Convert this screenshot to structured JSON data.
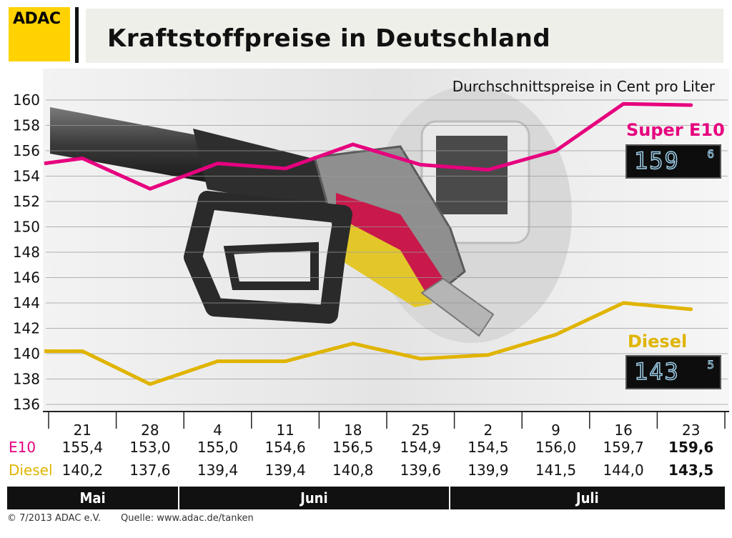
{
  "header": {
    "logo": "ADAC",
    "title": "Kraftstoffpreise in Deutschland"
  },
  "chart_data": {
    "type": "line",
    "subtitle": "Durchschnittspreise in Cent pro Liter",
    "ylim": [
      136,
      160
    ],
    "yticks": [
      136,
      138,
      140,
      142,
      144,
      146,
      148,
      150,
      152,
      154,
      156,
      158,
      160
    ],
    "grid": true,
    "categories": [
      "21",
      "28",
      "4",
      "11",
      "18",
      "25",
      "2",
      "9",
      "16",
      "23"
    ],
    "months": [
      {
        "label": "Mai",
        "span": [
          0,
          1
        ]
      },
      {
        "label": "Juni",
        "span": [
          2,
          5
        ]
      },
      {
        "label": "Juli",
        "span": [
          6,
          9
        ]
      }
    ],
    "series": [
      {
        "name": "Super E10",
        "row_label": "E10",
        "color": "#e6007e",
        "values": [
          155.4,
          153.0,
          155.0,
          154.6,
          156.5,
          154.9,
          154.5,
          156.0,
          159.7,
          159.6
        ],
        "value_labels": [
          "155,4",
          "153,0",
          "155,0",
          "154,6",
          "156,5",
          "154,9",
          "154,5",
          "156,0",
          "159,7",
          "159,6"
        ],
        "display": "159",
        "display_sup": "6"
      },
      {
        "name": "Diesel",
        "row_label": "Diesel",
        "color": "#e0b400",
        "values": [
          140.2,
          137.6,
          139.4,
          139.4,
          140.8,
          139.6,
          139.9,
          141.5,
          144.0,
          143.5
        ],
        "value_labels": [
          "140,2",
          "137,6",
          "139,4",
          "139,4",
          "140,8",
          "139,6",
          "139,9",
          "141,5",
          "144,0",
          "143,5"
        ],
        "display": "143",
        "display_sup": "5"
      }
    ]
  },
  "footer": {
    "copyright": "© 7/2013  ADAC e.V.",
    "source": "Quelle: www.adac.de/tanken"
  }
}
